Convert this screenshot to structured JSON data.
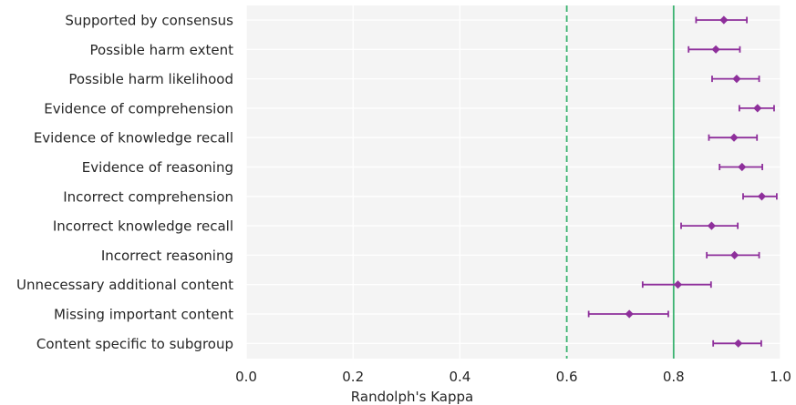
{
  "chart_data": {
    "type": "scatter",
    "title": "",
    "xlabel": "Randolph's Kappa",
    "ylabel": "",
    "xlim": [
      0.0,
      1.0
    ],
    "xticks": [
      "0.0",
      "0.2",
      "0.4",
      "0.6",
      "0.8",
      "1.0"
    ],
    "grid": true,
    "reference_lines": [
      {
        "x": 0.6,
        "style": "dashed",
        "color": "#3cb371"
      },
      {
        "x": 0.8,
        "style": "solid",
        "color": "#3cb371"
      }
    ],
    "marker_color": "#8e2f9b",
    "categories": [
      "Supported by consensus",
      "Possible harm extent",
      "Possible harm likelihood",
      "Evidence of comprehension",
      "Evidence of knowledge recall",
      "Evidence of reasoning",
      "Incorrect comprehension",
      "Incorrect knowledge recall",
      "Incorrect reasoning",
      "Unnecessary additional content",
      "Missing important content",
      "Content specific to subgroup"
    ],
    "values": [
      0.894,
      0.879,
      0.918,
      0.957,
      0.913,
      0.928,
      0.965,
      0.871,
      0.914,
      0.808,
      0.717,
      0.921
    ],
    "ci_low": [
      0.842,
      0.828,
      0.872,
      0.923,
      0.866,
      0.886,
      0.93,
      0.814,
      0.862,
      0.742,
      0.641,
      0.874
    ],
    "ci_high": [
      0.937,
      0.924,
      0.96,
      0.988,
      0.956,
      0.966,
      0.993,
      0.92,
      0.96,
      0.87,
      0.79,
      0.964
    ]
  }
}
